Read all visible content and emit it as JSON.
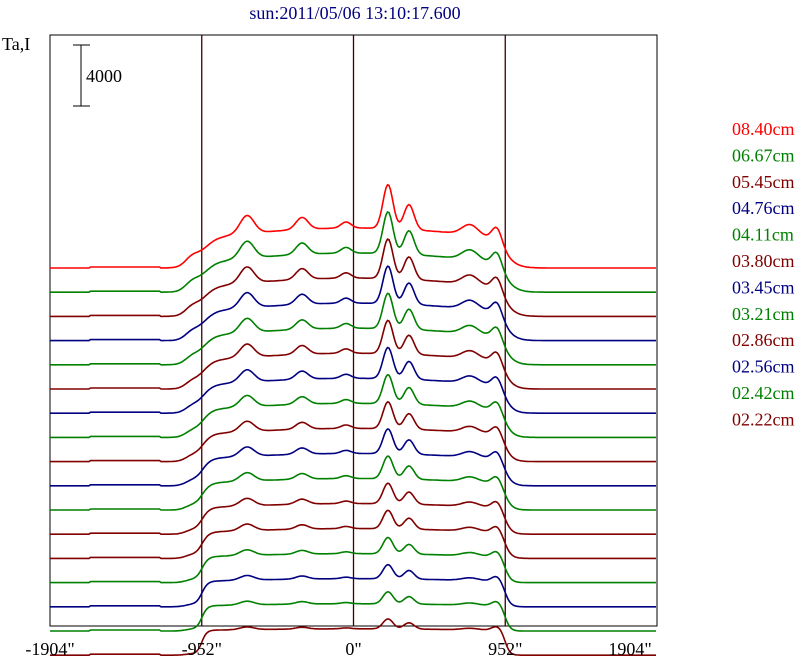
{
  "chart_data": {
    "type": "line",
    "title": "sun:2011/05/06 13:10:17.600",
    "ylabel": "Ta,I",
    "scale_bar_label": "4000",
    "xticks": [
      "-1904\"",
      "-952\"",
      "0\"",
      "952\"",
      "1904\""
    ],
    "xtick_values": [
      -1904,
      -952,
      0,
      952,
      1904
    ],
    "xlim": [
      -1904,
      1904
    ],
    "limb_lines": [
      -952,
      0,
      952
    ],
    "legend_placement": "right",
    "series": [
      {
        "name": "08.40cm",
        "color": "#ff0000",
        "spectrum": 0
      },
      {
        "name": "06.67cm",
        "color": "#008000",
        "spectrum": 1
      },
      {
        "name": "05.45cm",
        "color": "#800000",
        "spectrum": 2
      },
      {
        "name": "04.76cm",
        "color": "#000080",
        "spectrum": 3
      },
      {
        "name": "04.11cm",
        "color": "#008000",
        "spectrum": 4
      },
      {
        "name": "03.80cm",
        "color": "#800000",
        "spectrum": 5
      },
      {
        "name": "03.45cm",
        "color": "#000080",
        "spectrum": 6
      },
      {
        "name": "03.21cm",
        "color": "#008000",
        "spectrum": 7
      },
      {
        "name": "02.86cm",
        "color": "#800000",
        "spectrum": 8
      },
      {
        "name": "02.56cm",
        "color": "#000080",
        "spectrum": 9
      },
      {
        "name": "02.42cm",
        "color": "#008000",
        "spectrum": 10
      },
      {
        "name": "02.22cm",
        "color": "#800000",
        "spectrum": 11
      }
    ],
    "extra_lower_traces": [
      {
        "color": "#800000"
      },
      {
        "color": "#008000"
      },
      {
        "color": "#000080"
      },
      {
        "color": "#008000"
      },
      {
        "color": "#800000"
      }
    ]
  }
}
